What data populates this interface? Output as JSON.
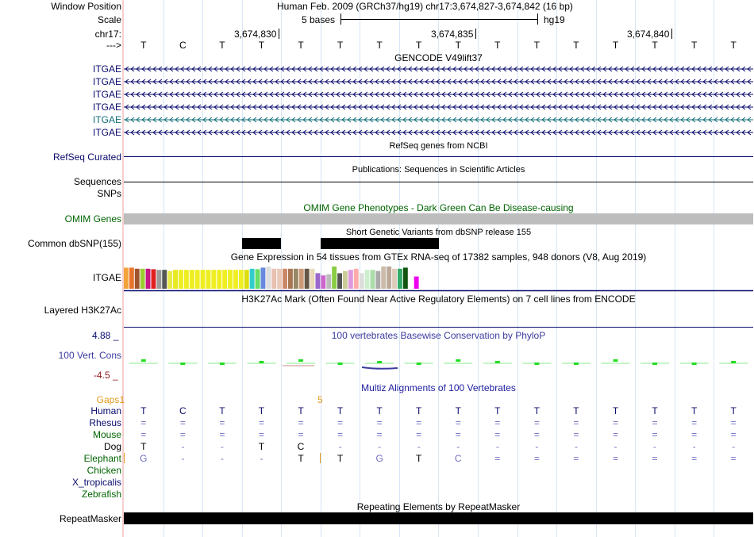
{
  "header": {
    "window_position_label": "Window Position",
    "window_position_text": "Human Feb. 2009 (GRCh37/hg19)   chr17:3,674,827-3,674,842 (16 bp)",
    "scale_label": "Scale",
    "scale_text": "5 bases",
    "scale_assembly": "hg19",
    "chrom_label": "chr17:",
    "coords": [
      "3,674,830",
      "3,674,835",
      "3,674,840"
    ],
    "strand_label": "--->"
  },
  "bases": [
    "T",
    "C",
    "T",
    "T",
    "T",
    "T",
    "T",
    "T",
    "T",
    "T",
    "T",
    "T",
    "T",
    "T",
    "T",
    "T"
  ],
  "gencode": {
    "title": "GENCODE V49lift37",
    "labels": [
      "ITGAE",
      "ITGAE",
      "ITGAE",
      "ITGAE",
      "ITGAE",
      "ITGAE"
    ],
    "colors": [
      "#0a0a6e",
      "#0a0a6e",
      "#0a0a6e",
      "#0a0a6e",
      "#0e6c78",
      "#0a0a6e"
    ]
  },
  "refseq": {
    "label": "RefSeq Curated",
    "title": "RefSeq genes from NCBI"
  },
  "publications": {
    "title": "Publications: Sequences in Scientific Articles",
    "label": "Sequences"
  },
  "snps_label": "SNPs",
  "omim": {
    "title": "OMIM Gene Phenotypes - Dark Green Can Be Disease-causing",
    "label": "OMIM Genes"
  },
  "dbsnp": {
    "label": "Common dbSNP(155)",
    "title": "Short Genetic Variants from dbSNP release 155"
  },
  "gtex": {
    "title": "Gene Expression in 54 tissues from GTEx RNA-seq of 17382 samples, 948 donors (V8, Aug 2019)",
    "label": "ITGAE",
    "bars": [
      {
        "c": "#f2a33a",
        "v": 0.95
      },
      {
        "c": "#e8732b",
        "v": 0.95
      },
      {
        "c": "#a0522d",
        "v": 0.9
      },
      {
        "c": "#9acd32",
        "v": 0.9
      },
      {
        "c": "#c71585",
        "v": 0.9
      },
      {
        "c": "#e02020",
        "v": 0.88
      },
      {
        "c": "#999999",
        "v": 0.85
      },
      {
        "c": "#555555",
        "v": 0.85
      },
      {
        "c": "#e8e84a",
        "v": 0.8
      },
      {
        "c": "#e8e820",
        "v": 0.85
      },
      {
        "c": "#eeee22",
        "v": 0.85
      },
      {
        "c": "#eeee22",
        "v": 0.85
      },
      {
        "c": "#eeee22",
        "v": 0.85
      },
      {
        "c": "#eeee22",
        "v": 0.85
      },
      {
        "c": "#eeee22",
        "v": 0.85
      },
      {
        "c": "#eeee22",
        "v": 0.85
      },
      {
        "c": "#eeee22",
        "v": 0.85
      },
      {
        "c": "#eeee22",
        "v": 0.85
      },
      {
        "c": "#eeee22",
        "v": 0.85
      },
      {
        "c": "#eeee22",
        "v": 0.85
      },
      {
        "c": "#eeee22",
        "v": 0.85
      },
      {
        "c": "#eeee22",
        "v": 0.85
      },
      {
        "c": "#dddd11",
        "v": 0.85
      },
      {
        "c": "#33cccc",
        "v": 0.9
      },
      {
        "c": "#66dd66",
        "v": 0.88
      },
      {
        "c": "#6688dd",
        "v": 0.95
      },
      {
        "c": "#dddddd",
        "v": 1.0
      },
      {
        "c": "#e8c0b0",
        "v": 0.9
      },
      {
        "c": "#e8c8b8",
        "v": 0.9
      },
      {
        "c": "#cc8866",
        "v": 0.9
      },
      {
        "c": "#aa7755",
        "v": 0.9
      },
      {
        "c": "#998866",
        "v": 0.9
      },
      {
        "c": "#cc9977",
        "v": 0.9
      },
      {
        "c": "#665544",
        "v": 0.9
      },
      {
        "c": "#e8d8b8",
        "v": 0.9
      },
      {
        "c": "#9966cc",
        "v": 0.7
      },
      {
        "c": "#cc66cc",
        "v": 0.6
      },
      {
        "c": "#bbbbbb",
        "v": 0.65
      },
      {
        "c": "#88cc44",
        "v": 1.0
      },
      {
        "c": "#555555",
        "v": 0.7
      },
      {
        "c": "#cccc99",
        "v": 0.8
      },
      {
        "c": "#dd99dd",
        "v": 0.85
      },
      {
        "c": "#ffaaaa",
        "v": 0.9
      },
      {
        "c": "#dddddd",
        "v": 0.7
      },
      {
        "c": "#cceecc",
        "v": 0.85
      },
      {
        "c": "#aaddaa",
        "v": 0.85
      },
      {
        "c": "#aaaaaa",
        "v": 0.8
      },
      {
        "c": "#ccbbaa",
        "v": 1.0
      },
      {
        "c": "#bbaa99",
        "v": 1.0
      },
      {
        "c": "#ddccbb",
        "v": 0.9
      },
      {
        "c": "#33aa66",
        "v": 0.9
      },
      {
        "c": "#115511",
        "v": 0.95
      },
      {
        "c": "#ffffff",
        "v": 0.3
      },
      {
        "c": "#ee00ee",
        "v": 0.55
      }
    ]
  },
  "h3k27ac": {
    "title": "H3K27Ac Mark (Often Found Near Active Regulatory Elements) on 7 cell lines from ENCODE",
    "label": "Layered H3K27Ac"
  },
  "phylop": {
    "max": "4.88 _",
    "min": "-4.5 _",
    "label": "100 Vert. Cons",
    "title": "100 vertebrates Basewise Conservation by PhyloP"
  },
  "multiz": {
    "title": "Multiz Alignments of 100 Vertebrates",
    "gaps_label": "Gaps",
    "gaps_marks": [
      "1",
      "5"
    ],
    "species": [
      {
        "name": "Human",
        "color": "#0a0a6e",
        "seq": [
          "T",
          "C",
          "T",
          "T",
          "T",
          "T",
          "T",
          "T",
          "T",
          "T",
          "T",
          "T",
          "T",
          "T",
          "T",
          "T"
        ]
      },
      {
        "name": "Rhesus",
        "color": "#0a0a6e",
        "seq": [
          "=",
          "=",
          "=",
          "=",
          "=",
          "=",
          "=",
          "=",
          "=",
          "=",
          "=",
          "=",
          "=",
          "=",
          "=",
          "="
        ]
      },
      {
        "name": "Mouse",
        "color": "#006400",
        "seq": [
          "=",
          "=",
          "=",
          "=",
          "=",
          "=",
          "=",
          "=",
          "=",
          "=",
          "=",
          "=",
          "=",
          "=",
          "=",
          "="
        ]
      },
      {
        "name": "Dog",
        "color": "#000000",
        "seq": [
          "T",
          "-",
          "-",
          "T",
          "C",
          "-",
          "-",
          "-",
          "-",
          "-",
          "-",
          "-",
          "-",
          "-",
          "-",
          "-"
        ]
      },
      {
        "name": "Elephant",
        "color": "#006400",
        "seq": [
          "G",
          "-",
          "-",
          "-",
          "T",
          "T",
          "G",
          "T",
          "C",
          "=",
          "=",
          "=",
          "=",
          "=",
          "=",
          "="
        ]
      },
      {
        "name": "Chicken",
        "color": "#006400",
        "seq": []
      },
      {
        "name": "X_tropicalis",
        "color": "#0a0a6e",
        "seq": []
      },
      {
        "name": "Zebrafish",
        "color": "#006400",
        "seq": []
      }
    ]
  },
  "repeatmasker": {
    "title": "Repeating Elements by RepeatMasker",
    "label": "RepeatMasker"
  }
}
